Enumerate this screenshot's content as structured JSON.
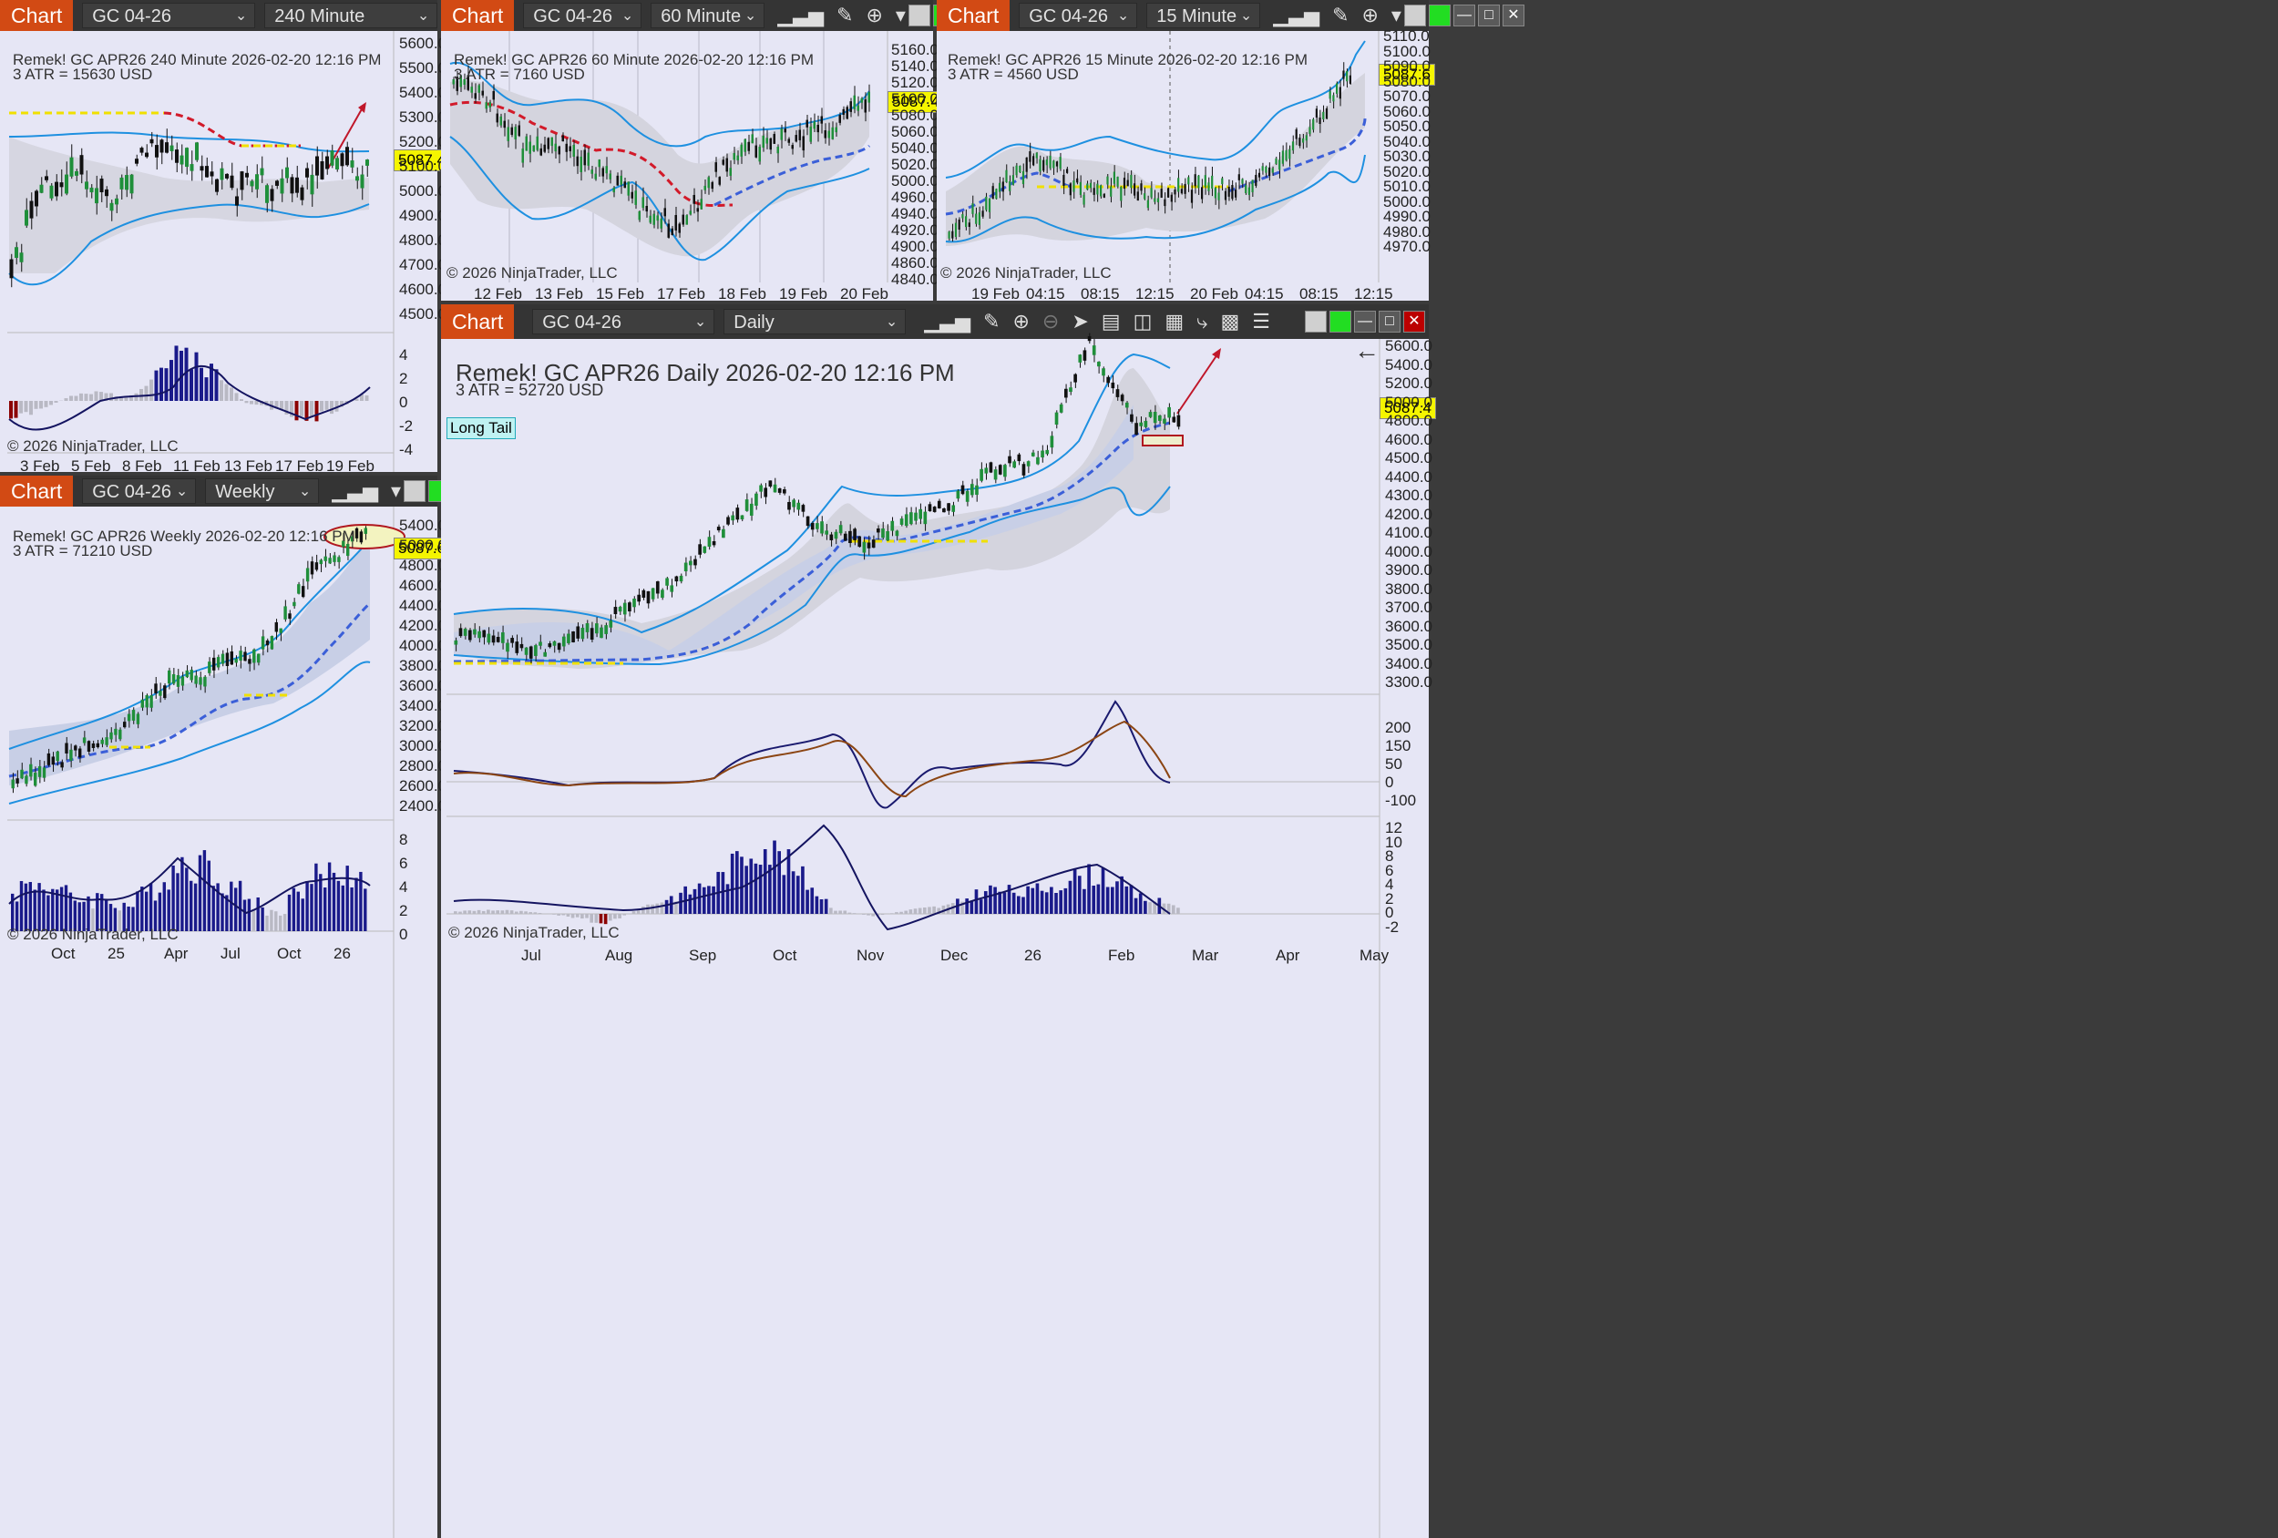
{
  "windows": {
    "w240": {
      "tag": "Chart",
      "instrument": "GC 04-26",
      "interval": "240 Minute",
      "title": "Remek!  GC APR26  240 Minute  2026-02-20 12:16 PM",
      "atr": "3 ATR = 15630 USD",
      "price": "5087.4",
      "copyright": "© 2026 NinjaTrader, LLC",
      "yticks": [
        "5600.0",
        "5500.0",
        "5400.0",
        "5300.0",
        "5200.0",
        "5100.0",
        "5000.0",
        "4900.0",
        "4800.0",
        "4700.0",
        "4600.0",
        "4500.0"
      ],
      "oscTicks": [
        "4",
        "2",
        "0",
        "-2",
        "-4"
      ],
      "xticks": [
        "3 Feb",
        "5 Feb",
        "8 Feb",
        "11 Feb",
        "13 Feb",
        "17 Feb",
        "19 Feb"
      ]
    },
    "w60": {
      "tag": "Chart",
      "instrument": "GC 04-26",
      "interval": "60 Minute",
      "title": "Remek!  GC APR26  60 Minute  2026-02-20 12:16 PM",
      "atr": "3 ATR = 7160 USD",
      "price": "5087.4",
      "copyright": "© 2026 NinjaTrader, LLC",
      "yticks": [
        "5160.0",
        "5140.0",
        "5120.0",
        "5100.0",
        "5080.0",
        "5060.0",
        "5040.0",
        "5020.0",
        "5000.0",
        "4960.0",
        "4940.0",
        "4920.0",
        "4900.0",
        "4860.0",
        "4840.0"
      ],
      "xticks": [
        "12 Feb",
        "13 Feb",
        "15 Feb",
        "17 Feb",
        "18 Feb",
        "19 Feb",
        "20 Feb"
      ]
    },
    "w15": {
      "tag": "Chart",
      "instrument": "GC 04-26",
      "interval": "15 Minute",
      "title": "Remek!  GC APR26  15 Minute  2026-02-20 12:16 PM",
      "atr": "3 ATR = 4560 USD",
      "price": "5087.6",
      "copyright": "© 2026 NinjaTrader, LLC",
      "yticks": [
        "5110.0",
        "5100.0",
        "5090.0",
        "5080.0",
        "5070.0",
        "5060.0",
        "5050.0",
        "5040.0",
        "5030.0",
        "5020.0",
        "5010.0",
        "5000.0",
        "4990.0",
        "4980.0",
        "4970.0"
      ],
      "xticks": [
        "19 Feb",
        "04:15",
        "08:15",
        "12:15",
        "20 Feb",
        "04:15",
        "08:15",
        "12:15"
      ]
    },
    "wWeekly": {
      "tag": "Chart",
      "instrument": "GC 04-26",
      "interval": "Weekly",
      "title": "Remek!  GC APR26  Weekly  2026-02-20 12:16 PM",
      "atr": "3 ATR = 71210 USD",
      "price": "5087.6",
      "copyright": "© 2026 NinjaTrader, LLC",
      "yticks": [
        "5400.0",
        "5000.0",
        "4800.0",
        "4600.0",
        "4400.0",
        "4200.0",
        "4000.0",
        "3800.0",
        "3600.0",
        "3400.0",
        "3200.0",
        "3000.0",
        "2800.0",
        "2600.0",
        "2400.0"
      ],
      "oscTicks": [
        "8",
        "6",
        "4",
        "2",
        "0"
      ],
      "xticks": [
        "Oct",
        "25",
        "Apr",
        "Jul",
        "Oct",
        "26"
      ]
    },
    "wDaily": {
      "tag": "Chart",
      "instrument": "GC 04-26",
      "interval": "Daily",
      "title": "Remek!  GC APR26  Daily  2026-02-20 12:16 PM",
      "atr": "3 ATR = 52720 USD",
      "label": "Long Tail",
      "price": "5087.4",
      "copyright": "© 2026 NinjaTrader, LLC",
      "yticks": [
        "5600.0",
        "5400.0",
        "5200.0",
        "5000.0",
        "4800.0",
        "4600.0",
        "4500.0",
        "4400.0",
        "4300.0",
        "4200.0",
        "4100.0",
        "4000.0",
        "3900.0",
        "3800.0",
        "3700.0",
        "3600.0",
        "3500.0",
        "3400.0",
        "3300.0"
      ],
      "macdTicks": [
        "200",
        "150",
        "50",
        "0",
        "-100"
      ],
      "oscTicks": [
        "12",
        "10",
        "8",
        "6",
        "4",
        "2",
        "0",
        "-2"
      ],
      "xticks": [
        "Jul",
        "Aug",
        "Sep",
        "Oct",
        "Nov",
        "Dec",
        "26",
        "Feb",
        "Mar",
        "Apr",
        "May"
      ]
    }
  },
  "icons": [
    "bars-type-icon",
    "pencil-icon",
    "zoom-in-icon",
    "zoom-out-icon",
    "pointer-icon",
    "data-box-icon",
    "strategy-icon",
    "chart-trader-icon",
    "indicator-icon",
    "properties-icon",
    "list-icon"
  ],
  "colors": {
    "chartBg": "#e6e6f5",
    "toolbar": "#343434",
    "tag": "#d24a14",
    "up": "#1f8f3a",
    "down": "#111111",
    "band": "#1e90e0",
    "dash": "#3b5fd8",
    "price": "#f5f500"
  }
}
